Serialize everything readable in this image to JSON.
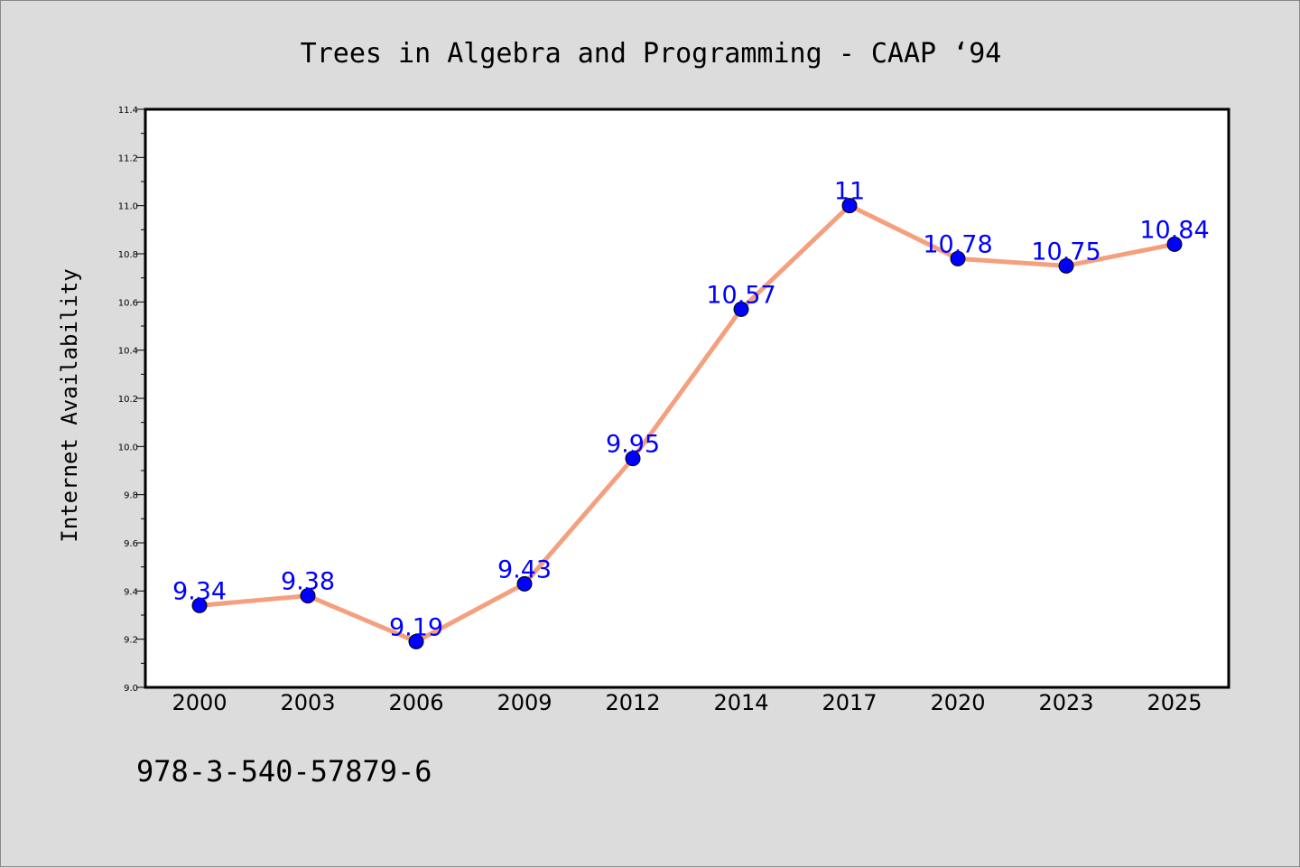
{
  "chart_data": {
    "type": "line",
    "title": "Trees in Algebra and Programming - CAAP  ‘94",
    "xlabel": "",
    "ylabel": "Internet Availability",
    "categories": [
      "2000",
      "2003",
      "2006",
      "2009",
      "2012",
      "2014",
      "2017",
      "2020",
      "2023",
      "2025"
    ],
    "series": [
      {
        "values": [
          9.34,
          9.38,
          9.19,
          9.43,
          9.95,
          10.57,
          11,
          10.78,
          10.75,
          10.84
        ],
        "labels": [
          "9.34",
          "9.38",
          "9.19",
          "9.43",
          "9.95",
          "10.57",
          "11",
          "10.78",
          "10.75",
          "10.84"
        ]
      }
    ],
    "ylim": [
      9.0,
      11.4
    ],
    "yticks": [
      "9.0",
      "9.2",
      "9.4",
      "9.6",
      "9.8",
      "10.0",
      "10.2",
      "10.4",
      "10.6",
      "10.8",
      "11.0",
      "11.2",
      "11.4"
    ],
    "grid": false,
    "legend": "none",
    "colors": {
      "line": "#f4a07e",
      "marker": "#0000ff",
      "label": "#0000ff",
      "plot_background": "#ffffff",
      "figure_background": "#dcdcdc"
    }
  },
  "footnote": "978-3-540-57879-6"
}
